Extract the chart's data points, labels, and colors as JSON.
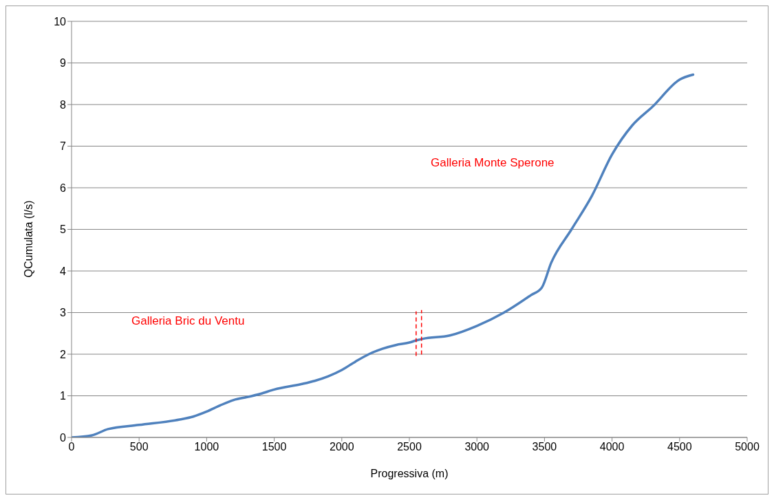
{
  "chart_data": {
    "type": "line",
    "xlabel": "Progressiva (m)",
    "ylabel": "QCumulata (l/s)",
    "x": [
      0,
      150,
      270,
      500,
      800,
      900,
      1000,
      1100,
      1200,
      1300,
      1400,
      1500,
      1700,
      1800,
      1900,
      2000,
      2100,
      2200,
      2300,
      2400,
      2500,
      2550,
      2600,
      2800,
      3000,
      3200,
      3400,
      3480,
      3550,
      3700,
      3850,
      4000,
      4150,
      4300,
      4500,
      4600
    ],
    "series": [
      {
        "color": "#4f81bd",
        "values": [
          0,
          0.05,
          0.2,
          0.3,
          0.43,
          0.5,
          0.62,
          0.77,
          0.9,
          0.97,
          1.05,
          1.15,
          1.28,
          1.36,
          1.47,
          1.62,
          1.82,
          2.0,
          2.13,
          2.22,
          2.28,
          2.33,
          2.37,
          2.45,
          2.68,
          3.0,
          3.42,
          3.6,
          4.2,
          5.0,
          5.8,
          6.8,
          7.5,
          7.95,
          8.6,
          8.72
        ]
      }
    ],
    "xlim": [
      0,
      5000
    ],
    "xticks": [
      0,
      500,
      1000,
      1500,
      2000,
      2500,
      3000,
      3500,
      4000,
      4500,
      5000
    ],
    "ylim": [
      0,
      10
    ],
    "yticks": [
      0,
      1,
      2,
      3,
      4,
      5,
      6,
      7,
      8,
      9,
      10
    ],
    "grid": "y",
    "legend": false,
    "marker": "none",
    "line_style": "solid",
    "ref_lines": [
      {
        "axis": "x",
        "value": 2550,
        "color": "#ff0000",
        "line_style": "dashed"
      },
      {
        "axis": "x",
        "value": 2590,
        "color": "#ff0000",
        "line_style": "dashed"
      }
    ],
    "annotations": [
      "Galleria Bric du Ventu",
      "Galleria Monte Sperone"
    ]
  }
}
